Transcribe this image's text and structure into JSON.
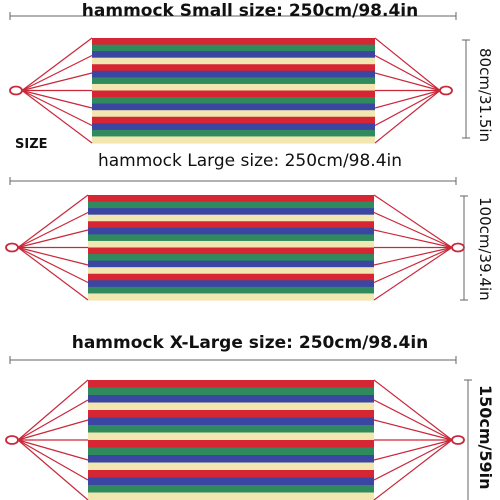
{
  "size_tag": "SIZE",
  "hammocks": [
    {
      "title": "hammock Small size: 250cm/98.4in",
      "side_label": "80cm/31.5in"
    },
    {
      "title": "hammock Large size: 250cm/98.4in",
      "side_label": "100cm/39.4in"
    },
    {
      "title": "hammock X-Large size: 250cm/98.4in",
      "side_label": "150cm/59in"
    }
  ],
  "colors": {
    "stripes": [
      "#d62533",
      "#2f8a5d",
      "#3b46a3",
      "#f2e7b0",
      "#d62533",
      "#3b46a3",
      "#2f8a5d",
      "#f2e7b0"
    ],
    "rope": "#c9283a",
    "dimension_line": "#666666"
  }
}
